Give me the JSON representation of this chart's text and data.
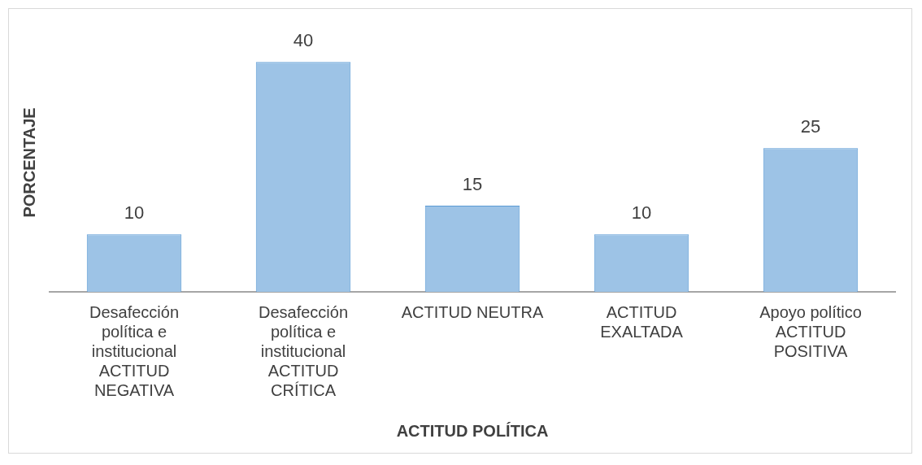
{
  "chart_data": {
    "type": "bar",
    "xlabel": "ACTITUD POLÍTICA",
    "ylabel": "PORCENTAJE",
    "categories": [
      "Desafección política e institucional ACTITUD NEGATIVA",
      "Desafección política e institucional ACTITUD CRÍTICA",
      "ACTITUD NEUTRA",
      "ACTITUD EXALTADA",
      "Apoyo político ACTITUD POSITIVA"
    ],
    "values": [
      10,
      40,
      15,
      10,
      25
    ],
    "color": "#9dc3e6",
    "data_labels": true,
    "grid": false,
    "legend": false,
    "tick_labels": "x"
  }
}
